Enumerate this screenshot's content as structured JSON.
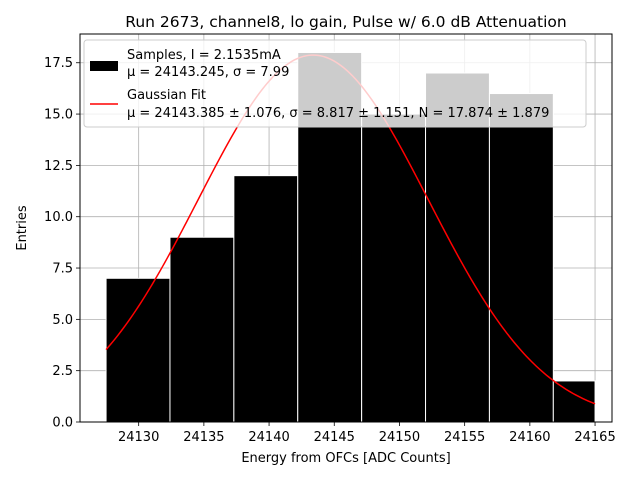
{
  "chart_data": {
    "type": "bar",
    "title": "Run 2673, channel8, lo gain, Pulse w/ 6.0 dB Attenuation",
    "xlabel": "Energy from OFCs [ADC Counts]",
    "ylabel": "Entries",
    "xlim": [
      24125.5,
      24166.3
    ],
    "ylim": [
      0,
      18.9
    ],
    "xticks": [
      24130,
      24135,
      24140,
      24145,
      24150,
      24155,
      24160,
      24165
    ],
    "yticks": [
      "0.0",
      "2.5",
      "5.0",
      "7.5",
      "10.0",
      "12.5",
      "15.0",
      "17.5"
    ],
    "grid": true,
    "legend_position": "upper-left",
    "histogram": {
      "bin_edges": [
        24127.5,
        24132.4,
        24137.3,
        24142.2,
        24147.1,
        24152.0,
        24156.9,
        24161.8,
        24165.0
      ],
      "bars": [
        {
          "x0": 24127.5,
          "x1": 24132.4,
          "count": 7
        },
        {
          "x0": 24132.4,
          "x1": 24137.3,
          "count": 9
        },
        {
          "x0": 24137.3,
          "x1": 24142.2,
          "count": 12
        },
        {
          "x0": 24142.2,
          "x1": 24147.1,
          "count": 18
        },
        {
          "x0": 24147.1,
          "x1": 24152.0,
          "count": 15
        },
        {
          "x0": 24152.0,
          "x1": 24156.9,
          "count": 17
        },
        {
          "x0": 24156.9,
          "x1": 24161.8,
          "count": 16
        },
        {
          "x0": 24161.8,
          "x1": 24165.0,
          "count": 2
        }
      ]
    },
    "series": [
      {
        "name": "Samples, I = 2.1535mA",
        "legend_line2": "μ = 24143.245, σ = 7.99",
        "kind": "histogram",
        "color": "#000000"
      },
      {
        "name": "Gaussian Fit",
        "legend_line2": "μ = 24143.385 ± 1.076, σ = 8.817 ± 1.151, N = 17.874 ± 1.879",
        "kind": "line",
        "color": "#ff0000",
        "mu": 24143.385,
        "sigma": 8.817,
        "N": 17.874,
        "x_range": [
          24127.5,
          24165.0
        ]
      }
    ]
  }
}
